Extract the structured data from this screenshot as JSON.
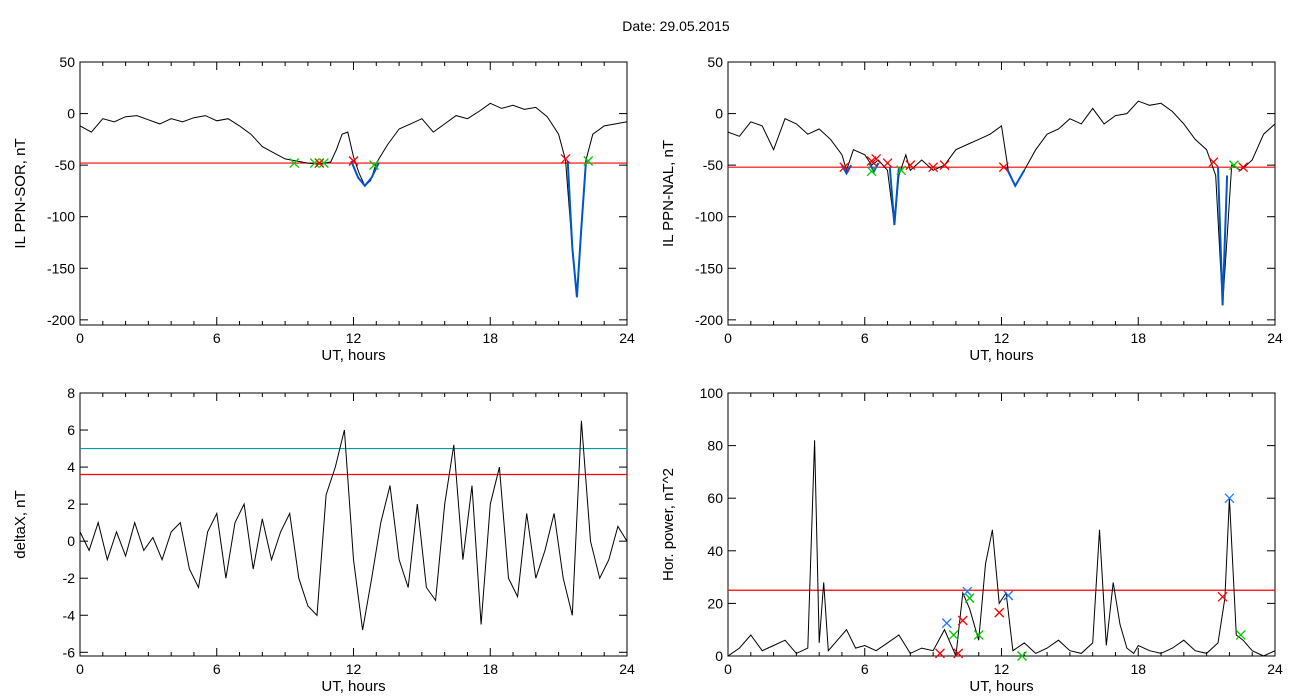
{
  "figure": {
    "title": "Date:  29.05.2015"
  },
  "colors": {
    "signal": "#000000",
    "threshold": "#ff0000",
    "threshold2": "#00a0a0",
    "event": "#0055cc",
    "event_edge": "#00cc00",
    "marker_red": "#ff0000",
    "marker_green": "#00cc00",
    "marker_blue": "#1e78ff"
  },
  "chart_data": [
    {
      "id": "ppn-sor",
      "type": "line",
      "xlabel": "UT, hours",
      "ylabel": "IL PPN-SOR, nT",
      "xlim": [
        0,
        24
      ],
      "ylim": [
        -205,
        50
      ],
      "xticks": [
        0,
        6,
        12,
        18,
        24
      ],
      "yticks": [
        50,
        0,
        -50,
        -100,
        -150,
        -200
      ],
      "thresholds": [
        {
          "y": -48,
          "color": "#ff0000"
        }
      ],
      "series": [
        {
          "x": [
            0,
            0.5,
            1,
            1.5,
            2,
            2.5,
            3,
            3.5,
            4,
            4.5,
            5,
            5.5,
            6,
            6.5,
            7,
            7.5,
            8,
            8.5,
            9,
            9.5,
            10,
            10.5,
            11,
            11.25,
            11.5,
            11.75,
            12,
            12.25,
            12.5,
            12.75,
            13,
            13.5,
            14,
            14.5,
            15,
            15.5,
            16,
            16.5,
            17,
            17.5,
            18,
            18.5,
            19,
            19.5,
            20,
            20.5,
            21,
            21.3,
            21.6,
            21.8,
            22,
            22.2,
            22.5,
            23,
            23.5,
            24
          ],
          "y": [
            -12,
            -18,
            -5,
            -8,
            -3,
            -2,
            -6,
            -10,
            -5,
            -8,
            -4,
            -2,
            -7,
            -5,
            -12,
            -20,
            -32,
            -38,
            -44,
            -46,
            -48,
            -49,
            -47,
            -35,
            -20,
            -18,
            -42,
            -58,
            -70,
            -65,
            -48,
            -30,
            -15,
            -10,
            -5,
            -18,
            -10,
            -2,
            -5,
            2,
            10,
            5,
            8,
            4,
            6,
            -3,
            -20,
            -45,
            -130,
            -178,
            -110,
            -45,
            -20,
            -12,
            -10,
            -8
          ]
        }
      ],
      "events": [
        {
          "x": [
            11.9,
            12.2,
            12.5,
            12.8,
            13.1
          ],
          "y": [
            -46,
            -62,
            -70,
            -62,
            -48
          ]
        },
        {
          "x": [
            21.4,
            21.6,
            21.8,
            22.0,
            22.2
          ],
          "y": [
            -46,
            -130,
            -178,
            -110,
            -46
          ]
        }
      ],
      "markers": [
        {
          "x": 9.4,
          "y": -48,
          "color": "#00cc00"
        },
        {
          "x": 10.3,
          "y": -48,
          "color": "#00cc00"
        },
        {
          "x": 10.7,
          "y": -48,
          "color": "#00cc00"
        },
        {
          "x": 10.5,
          "y": -48,
          "color": "#ff0000"
        },
        {
          "x": 12.0,
          "y": -46,
          "color": "#ff0000"
        },
        {
          "x": 12.9,
          "y": -50,
          "color": "#00cc00"
        },
        {
          "x": 21.3,
          "y": -44,
          "color": "#ff0000"
        },
        {
          "x": 22.3,
          "y": -46,
          "color": "#00cc00"
        }
      ]
    },
    {
      "id": "ppn-nal",
      "type": "line",
      "xlabel": "UT, hours",
      "ylabel": "IL PPN-NAL, nT",
      "xlim": [
        0,
        24
      ],
      "ylim": [
        -205,
        50
      ],
      "xticks": [
        0,
        6,
        12,
        18,
        24
      ],
      "yticks": [
        50,
        0,
        -50,
        -100,
        -150,
        -200
      ],
      "thresholds": [
        {
          "y": -52,
          "color": "#ff0000"
        }
      ],
      "series": [
        {
          "x": [
            0,
            0.5,
            1,
            1.5,
            2,
            2.5,
            3,
            3.5,
            4,
            4.5,
            5,
            5.2,
            5.5,
            6,
            6.3,
            6.6,
            7,
            7.3,
            7.5,
            7.8,
            8,
            8.5,
            9,
            9.5,
            10,
            10.5,
            11,
            11.5,
            12,
            12.3,
            12.6,
            13,
            13.5,
            14,
            14.5,
            15,
            15.5,
            16,
            16.5,
            17,
            17.5,
            18,
            18.5,
            19,
            19.5,
            20,
            20.5,
            21,
            21.4,
            21.7,
            21.9,
            22.1,
            22.5,
            23,
            23.5,
            24
          ],
          "y": [
            -18,
            -22,
            -8,
            -12,
            -35,
            -5,
            -10,
            -20,
            -15,
            -25,
            -40,
            -55,
            -35,
            -40,
            -50,
            -45,
            -55,
            -108,
            -60,
            -40,
            -55,
            -45,
            -55,
            -50,
            -35,
            -30,
            -25,
            -20,
            -12,
            -55,
            -70,
            -55,
            -35,
            -20,
            -15,
            -5,
            -10,
            5,
            -10,
            -2,
            0,
            12,
            8,
            10,
            2,
            -10,
            -25,
            -35,
            -60,
            -186,
            -120,
            -50,
            -55,
            -45,
            -20,
            -10
          ]
        }
      ],
      "events": [
        {
          "x": [
            5.0,
            5.2,
            5.4
          ],
          "y": [
            -50,
            -58,
            -50
          ]
        },
        {
          "x": [
            6.2,
            6.4,
            6.6
          ],
          "y": [
            -48,
            -56,
            -48
          ]
        },
        {
          "x": [
            7.1,
            7.3,
            7.5
          ],
          "y": [
            -52,
            -108,
            -52
          ]
        },
        {
          "x": [
            12.2,
            12.6,
            13.0
          ],
          "y": [
            -52,
            -70,
            -55
          ]
        },
        {
          "x": [
            21.5,
            21.7,
            21.9
          ],
          "y": [
            -52,
            -186,
            -60
          ]
        }
      ],
      "markers": [
        {
          "x": 5.1,
          "y": -52,
          "color": "#ff0000"
        },
        {
          "x": 6.3,
          "y": -46,
          "color": "#ff0000"
        },
        {
          "x": 6.5,
          "y": -44,
          "color": "#ff0000"
        },
        {
          "x": 6.3,
          "y": -56,
          "color": "#00cc00"
        },
        {
          "x": 7.0,
          "y": -48,
          "color": "#ff0000"
        },
        {
          "x": 7.6,
          "y": -55,
          "color": "#00cc00"
        },
        {
          "x": 8.0,
          "y": -50,
          "color": "#ff0000"
        },
        {
          "x": 9.0,
          "y": -52,
          "color": "#ff0000"
        },
        {
          "x": 9.5,
          "y": -50,
          "color": "#ff0000"
        },
        {
          "x": 12.1,
          "y": -52,
          "color": "#ff0000"
        },
        {
          "x": 21.3,
          "y": -47,
          "color": "#ff0000"
        },
        {
          "x": 22.2,
          "y": -50,
          "color": "#00cc00"
        },
        {
          "x": 22.6,
          "y": -52,
          "color": "#ff0000"
        }
      ]
    },
    {
      "id": "deltax",
      "type": "line",
      "xlabel": "UT, hours",
      "ylabel": "deltaX, nT",
      "xlim": [
        0,
        24
      ],
      "ylim": [
        -6.2,
        8
      ],
      "xticks": [
        0,
        6,
        12,
        18,
        24
      ],
      "yticks": [
        8,
        6,
        4,
        2,
        0,
        -2,
        -4,
        -6
      ],
      "thresholds": [
        {
          "y": 5.0,
          "color": "#00a0a0"
        },
        {
          "y": 3.6,
          "color": "#ff0000"
        }
      ],
      "series": [
        {
          "x": [
            0,
            0.4,
            0.8,
            1.2,
            1.6,
            2,
            2.4,
            2.8,
            3.2,
            3.6,
            4,
            4.4,
            4.8,
            5.2,
            5.6,
            6,
            6.4,
            6.8,
            7.2,
            7.6,
            8,
            8.4,
            8.8,
            9.2,
            9.6,
            10,
            10.4,
            10.8,
            11.2,
            11.6,
            12,
            12.4,
            12.8,
            13.2,
            13.6,
            14,
            14.4,
            14.8,
            15.2,
            15.6,
            16,
            16.4,
            16.8,
            17.2,
            17.6,
            18,
            18.4,
            18.8,
            19.2,
            19.6,
            20,
            20.4,
            20.8,
            21.2,
            21.6,
            22,
            22.4,
            22.8,
            23.2,
            23.6,
            24
          ],
          "y": [
            0.5,
            -0.5,
            1,
            -1,
            0.5,
            -0.8,
            1,
            -0.5,
            0.2,
            -1,
            0.5,
            1,
            -1.5,
            -2.5,
            0.5,
            1.5,
            -2,
            1,
            2,
            -1.5,
            1.2,
            -1,
            0.5,
            1.5,
            -2,
            -3.5,
            -4,
            2.5,
            4,
            6,
            -1,
            -4.8,
            -2,
            1,
            3,
            -1,
            -2.5,
            2,
            -2.5,
            -3.2,
            2,
            5.2,
            -1,
            3,
            -4.5,
            2,
            4,
            -2,
            -3,
            1.5,
            -2,
            -0.5,
            1.5,
            -2,
            -4,
            6.5,
            0,
            -2,
            -1,
            0.8,
            0
          ]
        }
      ],
      "events": [],
      "markers": []
    },
    {
      "id": "hor-power",
      "type": "line",
      "xlabel": "UT, hours",
      "ylabel": "Hor. power, nT^2",
      "xlim": [
        0,
        24
      ],
      "ylim": [
        0,
        100
      ],
      "xticks": [
        0,
        6,
        12,
        18,
        24
      ],
      "yticks": [
        100,
        80,
        60,
        40,
        20,
        0
      ],
      "thresholds": [
        {
          "y": 25,
          "color": "#ff0000"
        }
      ],
      "series": [
        {
          "x": [
            0,
            0.5,
            1,
            1.5,
            2,
            2.5,
            3,
            3.5,
            3.8,
            4,
            4.2,
            4.4,
            4.8,
            5.2,
            5.6,
            6,
            6.5,
            7,
            7.5,
            8,
            8.5,
            9,
            9.5,
            10,
            10.3,
            10.6,
            11,
            11.3,
            11.6,
            11.9,
            12.2,
            12.5,
            13,
            13.5,
            14,
            14.5,
            15,
            15.5,
            16,
            16.3,
            16.6,
            16.9,
            17.2,
            17.5,
            17.8,
            18,
            18.5,
            19,
            19.5,
            20,
            20.5,
            21,
            21.5,
            21.8,
            22,
            22.3,
            22.6,
            23,
            23.5,
            24
          ],
          "y": [
            0,
            3,
            8,
            2,
            4,
            6,
            1,
            3,
            82,
            5,
            28,
            2,
            6,
            10,
            3,
            4,
            2,
            5,
            8,
            1,
            3,
            2,
            10,
            0,
            24,
            18,
            6,
            35,
            48,
            20,
            24,
            2,
            5,
            1,
            3,
            6,
            2,
            1,
            5,
            48,
            4,
            28,
            12,
            3,
            1,
            4,
            2,
            1,
            3,
            6,
            2,
            1,
            5,
            22,
            60,
            8,
            6,
            2,
            0,
            2
          ]
        }
      ],
      "events": [],
      "markers": [
        {
          "x": 9.6,
          "y": 12.5,
          "color": "#1e78ff"
        },
        {
          "x": 9.9,
          "y": 8,
          "color": "#00cc00"
        },
        {
          "x": 10.5,
          "y": 24.5,
          "color": "#1e78ff"
        },
        {
          "x": 10.6,
          "y": 22,
          "color": "#00cc00"
        },
        {
          "x": 9.3,
          "y": 1,
          "color": "#ff0000"
        },
        {
          "x": 10.3,
          "y": 13.5,
          "color": "#ff0000"
        },
        {
          "x": 10.1,
          "y": 1,
          "color": "#ff0000"
        },
        {
          "x": 11.0,
          "y": 8,
          "color": "#00cc00"
        },
        {
          "x": 11.9,
          "y": 16.5,
          "color": "#ff0000"
        },
        {
          "x": 12.3,
          "y": 23,
          "color": "#1e78ff"
        },
        {
          "x": 12.9,
          "y": 0,
          "color": "#00cc00"
        },
        {
          "x": 21.7,
          "y": 22.5,
          "color": "#ff0000"
        },
        {
          "x": 22.0,
          "y": 60,
          "color": "#1e78ff"
        },
        {
          "x": 22.5,
          "y": 8,
          "color": "#00cc00"
        }
      ]
    }
  ]
}
